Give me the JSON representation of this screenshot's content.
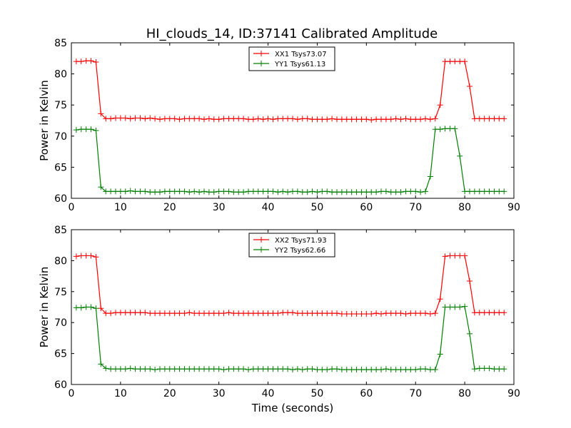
{
  "title": "HI_clouds_14, ID:37141 Calibrated Amplitude",
  "chart_data": [
    {
      "type": "line",
      "title": "HI_clouds_14, ID:37141 Calibrated Amplitude",
      "xlabel": "",
      "ylabel": "Power in Kelvin",
      "xlim": [
        0,
        90
      ],
      "ylim": [
        60,
        85
      ],
      "xticks": [
        "0",
        "10",
        "20",
        "30",
        "40",
        "50",
        "60",
        "70",
        "80",
        "90"
      ],
      "yticks": [
        "60",
        "65",
        "70",
        "75",
        "80",
        "85"
      ],
      "legend_position": "top-center",
      "grid": false,
      "x": [
        1,
        2,
        3,
        4,
        5,
        6,
        7,
        8,
        9,
        10,
        11,
        12,
        13,
        14,
        15,
        16,
        17,
        18,
        19,
        20,
        21,
        22,
        23,
        24,
        25,
        26,
        27,
        28,
        29,
        30,
        31,
        32,
        33,
        34,
        35,
        36,
        37,
        38,
        39,
        40,
        41,
        42,
        43,
        44,
        45,
        46,
        47,
        48,
        49,
        50,
        51,
        52,
        53,
        54,
        55,
        56,
        57,
        58,
        59,
        60,
        61,
        62,
        63,
        64,
        65,
        66,
        67,
        68,
        69,
        70,
        71,
        72,
        73,
        74,
        75,
        76,
        77,
        78,
        79,
        80,
        81,
        82,
        83,
        84,
        85,
        86,
        87,
        88
      ],
      "series": [
        {
          "name": "XX1 Tsys73.07",
          "color": "#ff0000",
          "values": [
            82.0,
            82.0,
            82.1,
            82.1,
            81.9,
            73.6,
            72.8,
            72.8,
            72.9,
            72.9,
            72.9,
            72.8,
            72.9,
            72.9,
            72.8,
            72.9,
            72.8,
            72.7,
            72.8,
            72.8,
            72.8,
            72.7,
            72.8,
            72.8,
            72.8,
            72.8,
            72.7,
            72.8,
            72.7,
            72.7,
            72.8,
            72.8,
            72.8,
            72.8,
            72.8,
            72.7,
            72.7,
            72.8,
            72.7,
            72.8,
            72.7,
            72.8,
            72.8,
            72.8,
            72.8,
            72.7,
            72.8,
            72.8,
            72.7,
            72.7,
            72.7,
            72.7,
            72.8,
            72.7,
            72.7,
            72.7,
            72.7,
            72.7,
            72.7,
            72.7,
            72.6,
            72.7,
            72.7,
            72.7,
            72.7,
            72.8,
            72.7,
            72.8,
            72.7,
            72.7,
            72.7,
            72.8,
            72.7,
            72.8,
            75.0,
            82.0,
            82.0,
            82.0,
            82.0,
            82.0,
            78.0,
            72.8,
            72.8,
            72.8,
            72.8,
            72.8,
            72.8,
            72.8
          ]
        },
        {
          "name": "YY1 Tsys61.13",
          "color": "#008000",
          "values": [
            71.0,
            71.1,
            71.1,
            71.1,
            70.9,
            61.8,
            61.1,
            61.1,
            61.1,
            61.1,
            61.1,
            61.2,
            61.1,
            61.1,
            61.1,
            61.0,
            61.0,
            61.0,
            61.1,
            61.1,
            61.1,
            61.1,
            61.1,
            61.0,
            61.1,
            61.0,
            61.1,
            61.0,
            61.0,
            61.1,
            61.1,
            61.1,
            61.0,
            61.0,
            61.0,
            61.1,
            61.1,
            61.1,
            61.1,
            61.1,
            61.1,
            61.0,
            61.1,
            61.0,
            61.1,
            61.1,
            61.0,
            61.0,
            61.1,
            61.0,
            61.1,
            61.1,
            61.0,
            61.0,
            61.0,
            61.0,
            61.0,
            61.0,
            61.0,
            61.0,
            61.0,
            61.0,
            61.1,
            61.1,
            61.0,
            61.0,
            61.0,
            61.1,
            61.1,
            61.1,
            61.0,
            61.1,
            63.5,
            71.1,
            71.1,
            71.2,
            71.2,
            71.2,
            66.8,
            61.1,
            61.1,
            61.1,
            61.1,
            61.1,
            61.1,
            61.1,
            61.1,
            61.1
          ]
        }
      ]
    },
    {
      "type": "line",
      "title": "",
      "xlabel": "Time (seconds)",
      "ylabel": "Power in Kelvin",
      "xlim": [
        0,
        90
      ],
      "ylim": [
        60,
        85
      ],
      "xticks": [
        "0",
        "10",
        "20",
        "30",
        "40",
        "50",
        "60",
        "70",
        "80",
        "90"
      ],
      "yticks": [
        "60",
        "65",
        "70",
        "75",
        "80",
        "85"
      ],
      "legend_position": "top-center",
      "grid": false,
      "x": [
        1,
        2,
        3,
        4,
        5,
        6,
        7,
        8,
        9,
        10,
        11,
        12,
        13,
        14,
        15,
        16,
        17,
        18,
        19,
        20,
        21,
        22,
        23,
        24,
        25,
        26,
        27,
        28,
        29,
        30,
        31,
        32,
        33,
        34,
        35,
        36,
        37,
        38,
        39,
        40,
        41,
        42,
        43,
        44,
        45,
        46,
        47,
        48,
        49,
        50,
        51,
        52,
        53,
        54,
        55,
        56,
        57,
        58,
        59,
        60,
        61,
        62,
        63,
        64,
        65,
        66,
        67,
        68,
        69,
        70,
        71,
        72,
        73,
        74,
        75,
        76,
        77,
        78,
        79,
        80,
        81,
        82,
        83,
        84,
        85,
        86,
        87,
        88
      ],
      "series": [
        {
          "name": "XX2 Tsys71.93",
          "color": "#ff0000",
          "values": [
            80.7,
            80.8,
            80.8,
            80.8,
            80.6,
            72.3,
            71.5,
            71.5,
            71.6,
            71.6,
            71.6,
            71.6,
            71.6,
            71.6,
            71.6,
            71.5,
            71.5,
            71.5,
            71.5,
            71.5,
            71.5,
            71.5,
            71.5,
            71.6,
            71.5,
            71.5,
            71.5,
            71.5,
            71.5,
            71.5,
            71.5,
            71.6,
            71.5,
            71.5,
            71.5,
            71.5,
            71.5,
            71.5,
            71.5,
            71.5,
            71.5,
            71.5,
            71.6,
            71.6,
            71.6,
            71.5,
            71.5,
            71.5,
            71.5,
            71.5,
            71.5,
            71.5,
            71.5,
            71.5,
            71.4,
            71.4,
            71.4,
            71.4,
            71.4,
            71.4,
            71.4,
            71.5,
            71.4,
            71.5,
            71.5,
            71.5,
            71.5,
            71.4,
            71.5,
            71.5,
            71.5,
            71.5,
            71.4,
            71.5,
            73.8,
            80.7,
            80.8,
            80.8,
            80.8,
            80.8,
            76.7,
            71.6,
            71.6,
            71.6,
            71.6,
            71.6,
            71.6,
            71.6
          ]
        },
        {
          "name": "YY2 Tsys62.66",
          "color": "#008000",
          "values": [
            72.4,
            72.4,
            72.5,
            72.5,
            72.3,
            63.3,
            62.6,
            62.5,
            62.5,
            62.5,
            62.5,
            62.6,
            62.5,
            62.5,
            62.5,
            62.5,
            62.4,
            62.5,
            62.5,
            62.5,
            62.5,
            62.5,
            62.5,
            62.5,
            62.5,
            62.5,
            62.5,
            62.5,
            62.5,
            62.5,
            62.4,
            62.5,
            62.5,
            62.5,
            62.5,
            62.4,
            62.5,
            62.5,
            62.5,
            62.5,
            62.5,
            62.5,
            62.5,
            62.5,
            62.4,
            62.5,
            62.4,
            62.5,
            62.5,
            62.4,
            62.4,
            62.4,
            62.5,
            62.5,
            62.4,
            62.4,
            62.4,
            62.4,
            62.4,
            62.4,
            62.4,
            62.4,
            62.4,
            62.5,
            62.4,
            62.4,
            62.4,
            62.4,
            62.4,
            62.4,
            62.5,
            62.5,
            62.4,
            62.4,
            64.9,
            72.5,
            72.5,
            72.5,
            72.5,
            72.6,
            68.2,
            62.5,
            62.6,
            62.6,
            62.6,
            62.5,
            62.5,
            62.5
          ]
        }
      ]
    }
  ]
}
